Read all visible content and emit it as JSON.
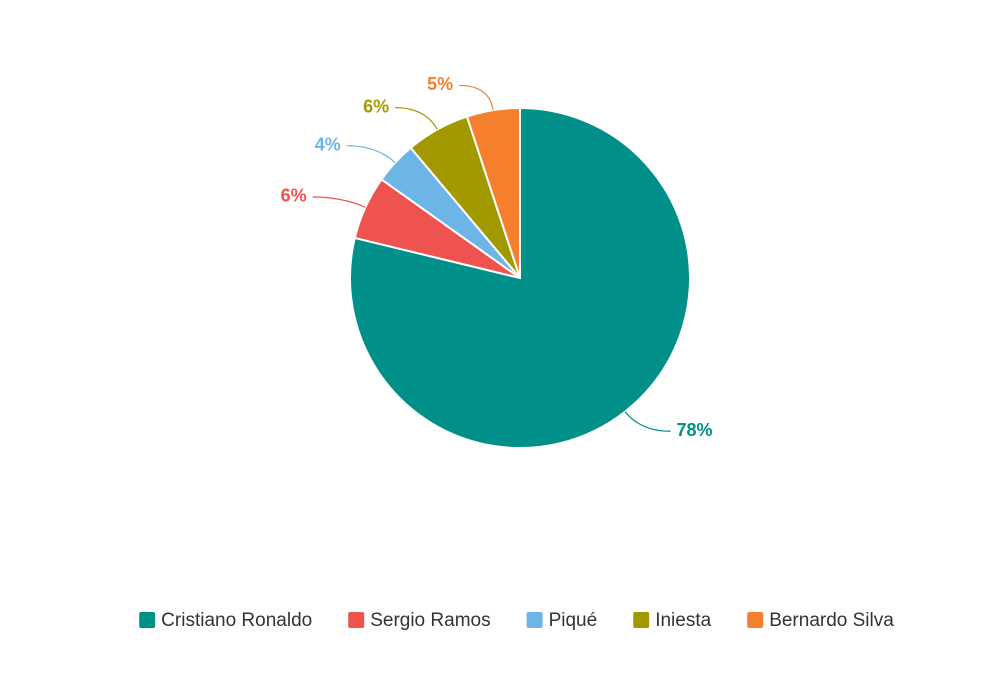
{
  "chart_data": {
    "type": "pie",
    "categories": [
      "Cristiano Ronaldo",
      "Sergio Ramos",
      "Piqué",
      "Iniesta",
      "Bernardo Silva"
    ],
    "values": [
      78,
      6,
      4,
      6,
      5
    ],
    "value_labels": [
      "78%",
      "6%",
      "4%",
      "6%",
      "5%"
    ],
    "colors": [
      "#008f89",
      "#ef5350",
      "#6db5e6",
      "#a29900",
      "#f57f2c"
    ],
    "legend": "bottom"
  }
}
